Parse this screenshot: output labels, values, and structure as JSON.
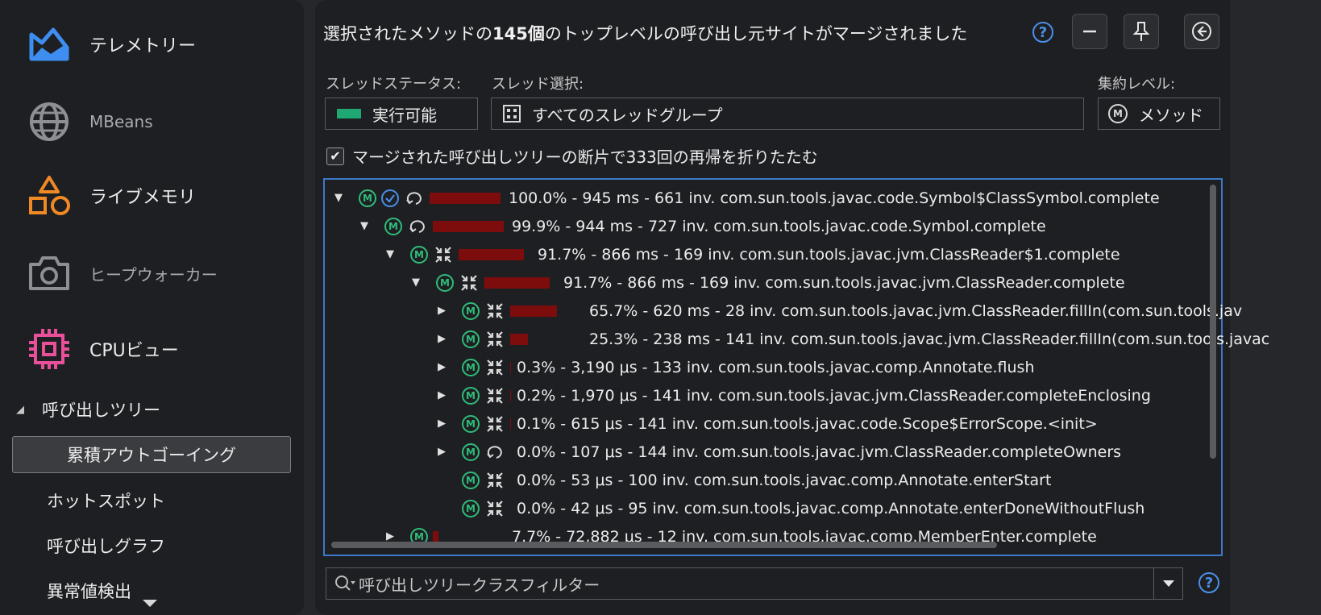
{
  "sidebar": {
    "nav": [
      {
        "label": "テレメトリー",
        "icon": "telemetry-icon"
      },
      {
        "label": "MBeans",
        "icon": "globe-icon"
      },
      {
        "label": "ライブメモリ",
        "icon": "shapes-icon"
      },
      {
        "label": "ヒープウォーカー",
        "icon": "camera-icon"
      },
      {
        "label": "CPUビュー",
        "icon": "cpu-chip-icon"
      }
    ],
    "section": "呼び出しツリー",
    "sub_items": [
      "累積アウトゴーイング",
      "ホットスポット",
      "呼び出しグラフ",
      "異常値検出"
    ],
    "selected_sub_item": "累積アウトゴーイング",
    "colors": {
      "telemetry": "#3d8ef0",
      "shapes": "#f08a24",
      "cpu": "#e8509a"
    }
  },
  "header": {
    "title_prefix": "選択されたメソッドの",
    "title_count": "145個",
    "title_suffix": "のトップレベルの呼び出し元サイトがマージされました",
    "help": "?"
  },
  "controls": {
    "thread_status_label": "スレッドステータス:",
    "thread_status_value": "実行可能",
    "thread_select_label": "スレッド選択:",
    "thread_select_value": "すべてのスレッドグループ",
    "aggregation_label": "集約レベル:",
    "aggregation_value": "メソッド",
    "collapse_checkbox_label": "マージされた呼び出しツリーの断片で333回の再帰を折りたたむ",
    "collapse_checked": true,
    "status_color": "#1fa873"
  },
  "tree": {
    "rows": [
      {
        "indent": 0,
        "expand": "▼",
        "ricon": "recursion",
        "check": true,
        "bar": 1.0,
        "text": "100.0% - 945 ms - 661 inv. com.sun.tools.javac.code.Symbol$ClassSymbol.complete"
      },
      {
        "indent": 1,
        "expand": "▼",
        "ricon": "recursion",
        "check": false,
        "bar": 0.999,
        "text": "99.9% - 944 ms - 727 inv. com.sun.tools.javac.code.Symbol.complete"
      },
      {
        "indent": 2,
        "expand": "▼",
        "ricon": "merged",
        "check": false,
        "bar": 0.917,
        "text": "91.7% - 866 ms - 169 inv. com.sun.tools.javac.jvm.ClassReader$1.complete"
      },
      {
        "indent": 3,
        "expand": "▼",
        "ricon": "merged",
        "check": false,
        "bar": 0.917,
        "text": "91.7% - 866 ms - 169 inv. com.sun.tools.javac.jvm.ClassReader.complete"
      },
      {
        "indent": 4,
        "expand": "▶",
        "ricon": "merged",
        "check": false,
        "bar": 0.657,
        "text": "65.7% - 620 ms - 28 inv. com.sun.tools.javac.jvm.ClassReader.fillIn(com.sun.tools.jav"
      },
      {
        "indent": 4,
        "expand": "▶",
        "ricon": "merged",
        "check": false,
        "bar": 0.253,
        "text": "25.3% - 238 ms - 141 inv. com.sun.tools.javac.jvm.ClassReader.fillIn(com.sun.tools.javac"
      },
      {
        "indent": 4,
        "expand": "▶",
        "ricon": "merged",
        "check": false,
        "bar": 0.003,
        "text": "0.3% - 3,190 μs - 133 inv. com.sun.tools.javac.comp.Annotate.flush"
      },
      {
        "indent": 4,
        "expand": "▶",
        "ricon": "merged",
        "check": false,
        "bar": 0.002,
        "text": "0.2% - 1,970 μs - 141 inv. com.sun.tools.javac.jvm.ClassReader.completeEnclosing"
      },
      {
        "indent": 4,
        "expand": "▶",
        "ricon": "merged",
        "check": false,
        "bar": 0.001,
        "text": "0.1% - 615 μs - 141 inv. com.sun.tools.javac.code.Scope$ErrorScope.<init>"
      },
      {
        "indent": 4,
        "expand": "▶",
        "ricon": "recursion",
        "check": false,
        "bar": 0.0,
        "text": "0.0% - 107 μs - 144 inv. com.sun.tools.javac.jvm.ClassReader.completeOwners"
      },
      {
        "indent": 4,
        "expand": "",
        "ricon": "merged",
        "check": false,
        "bar": 0.0,
        "text": "0.0% - 53 μs - 100 inv. com.sun.tools.javac.comp.Annotate.enterStart"
      },
      {
        "indent": 4,
        "expand": "",
        "ricon": "merged",
        "check": false,
        "bar": 0.0,
        "text": "0.0% - 42 μs - 95 inv. com.sun.tools.javac.comp.Annotate.enterDoneWithoutFlush"
      },
      {
        "indent": 2,
        "expand": "▶",
        "ricon": "none",
        "check": false,
        "bar": 0.077,
        "text": "7.7% - 72,882 μs - 12 inv. com.sun.tools.javac.comp.MemberEnter.complete"
      }
    ],
    "bar_color": "#7d0d0d"
  },
  "filter": {
    "placeholder": "呼び出しツリークラスフィルター"
  }
}
